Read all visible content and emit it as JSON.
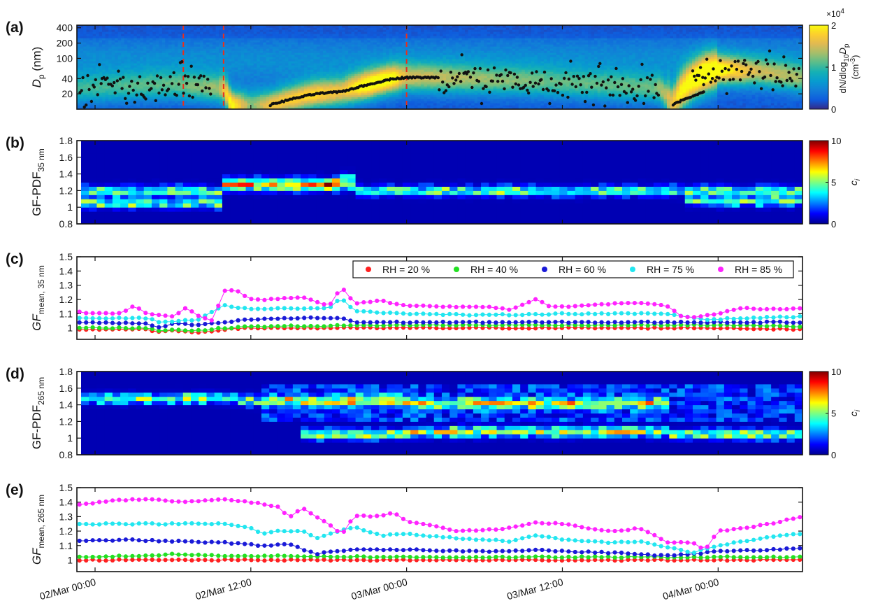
{
  "figure": {
    "x_tick_labels": [
      "02/Mar 00:00",
      "02/Mar 12:00",
      "03/Mar 00:00",
      "03/Mar 12:00",
      "04/Mar 00:00"
    ],
    "x_tick_hours": [
      0,
      12,
      24,
      36,
      48
    ],
    "x_range_hours": [
      -1.4,
      54.5
    ]
  },
  "chart_data": [
    {
      "panel": "(a)",
      "type": "heatmap",
      "ylabel_main": "D",
      "ylabel_sub": "p",
      "ylabel_unit": " (nm)",
      "yscale": "log",
      "ylim": [
        10,
        450
      ],
      "yticks": [
        20,
        40,
        100,
        200,
        400
      ],
      "colorbar": {
        "min": 0,
        "max": 2,
        "ticks": [
          0,
          1,
          2
        ],
        "multiplier_label": "×10",
        "multiplier_exp": "4",
        "label_line1": "dN/dlog",
        "label_line1_sub": "10",
        "label_line1_tail": "D",
        "label_line1_tail_sub": "p",
        "label_line2": "(cm",
        "label_line2_sup": "-3",
        "label_line2_tail": ")"
      },
      "event_lines_hours": [
        6.8,
        9.9,
        24.0
      ],
      "event_line_color": "#e8301c",
      "mode_diameter_points": [
        {
          "x_hours": [
            -1.2,
            9.0
          ],
          "d_nm": [
            20,
            40
          ],
          "kind": "scatter"
        },
        {
          "x_hours": [
            13.5,
            17.0,
            19.0,
            21.0,
            23.0,
            24.0,
            26.5
          ],
          "d_nm": [
            12,
            20,
            22,
            30,
            40,
            42,
            42
          ],
          "kind": "growth"
        },
        {
          "x_hours": [
            26.5,
            43.5
          ],
          "d_nm": [
            18,
            75
          ],
          "kind": "scatter"
        },
        {
          "x_hours": [
            44.5,
            46.0,
            47.0
          ],
          "d_nm": [
            12,
            18,
            22
          ],
          "kind": "growth"
        },
        {
          "x_hours": [
            46.0,
            54.3
          ],
          "d_nm": [
            25,
            80
          ],
          "kind": "scatter"
        }
      ]
    },
    {
      "panel": "(b)",
      "type": "heatmap",
      "ylabel_main": "GF-PDF",
      "ylabel_sub": "35 nm",
      "ylim": [
        0.8,
        1.8
      ],
      "yticks": [
        0.8,
        1,
        1.2,
        1.4,
        1.6,
        1.8
      ],
      "colorbar": {
        "min": 0,
        "max": 10,
        "ticks": [
          0,
          5,
          10
        ],
        "label": "c",
        "label_sub": "i"
      },
      "dominant_gf_by_hour": [
        {
          "x_hours": 0,
          "gf": [
            1.05,
            1.2
          ]
        },
        {
          "x_hours": 9,
          "gf": [
            1.02,
            1.18
          ]
        },
        {
          "x_hours": 10,
          "gf": [
            1.25,
            1.3
          ]
        },
        {
          "x_hours": 19,
          "gf": [
            1.35,
            1.25
          ]
        },
        {
          "x_hours": 20,
          "gf": [
            1.2
          ]
        },
        {
          "x_hours": 44,
          "gf": [
            1.2
          ]
        },
        {
          "x_hours": 45,
          "gf": [
            1.08,
            1.2
          ]
        },
        {
          "x_hours": 54,
          "gf": [
            1.1,
            1.2
          ]
        }
      ]
    },
    {
      "panel": "(c)",
      "type": "line",
      "ylabel_main": "GF",
      "ylabel_sub": "mean, 35 nm",
      "ylim": [
        0.92,
        1.5
      ],
      "yticks": [
        1,
        1.1,
        1.2,
        1.3,
        1.4,
        1.5
      ],
      "legend_position": "top-right",
      "series": [
        {
          "name": "RH = 20 %",
          "color": "#ff2020",
          "x": [
            -1.2,
            4,
            5,
            6,
            8,
            10,
            12,
            24,
            36,
            48,
            54.3
          ],
          "values": [
            0.99,
            0.99,
            0.97,
            0.98,
            0.97,
            0.99,
            1.0,
            1.0,
            1.0,
            1.0,
            0.99
          ]
        },
        {
          "name": "RH = 40 %",
          "color": "#22e022",
          "x": [
            -1.2,
            4,
            5,
            6,
            8,
            10,
            12,
            24,
            36,
            48,
            54.3
          ],
          "values": [
            1.0,
            1.0,
            0.98,
            0.99,
            0.98,
            1.0,
            1.01,
            1.02,
            1.02,
            1.02,
            1.01
          ]
        },
        {
          "name": "RH = 60 %",
          "color": "#1a1ad8",
          "x": [
            -1.2,
            4,
            5,
            6,
            8,
            10,
            12,
            16,
            19,
            20,
            24,
            36,
            48,
            54.3
          ],
          "values": [
            1.04,
            1.03,
            1.0,
            1.03,
            1.02,
            1.04,
            1.06,
            1.07,
            1.07,
            1.04,
            1.04,
            1.04,
            1.04,
            1.04
          ]
        },
        {
          "name": "RH = 75 %",
          "color": "#22e6f0",
          "x": [
            -1.2,
            4,
            5,
            8,
            10,
            12,
            16,
            18,
            19,
            20,
            24,
            30,
            36,
            44,
            47,
            54.3
          ],
          "values": [
            1.07,
            1.07,
            1.04,
            1.06,
            1.16,
            1.13,
            1.14,
            1.14,
            1.21,
            1.12,
            1.1,
            1.09,
            1.1,
            1.1,
            1.06,
            1.08
          ]
        },
        {
          "name": "RH = 85 %",
          "color": "#ff22ff",
          "x": [
            -1.2,
            2,
            3,
            4,
            5,
            6,
            7,
            8,
            9,
            10,
            11,
            12,
            14,
            16,
            18,
            19,
            20,
            22,
            24,
            26,
            28,
            30,
            32,
            34,
            35,
            36,
            38,
            40,
            42,
            44,
            45,
            46,
            48,
            50,
            52,
            54.3
          ],
          "values": [
            1.11,
            1.1,
            1.16,
            1.1,
            1.09,
            1.08,
            1.14,
            1.08,
            1.05,
            1.26,
            1.26,
            1.2,
            1.2,
            1.22,
            1.15,
            1.29,
            1.17,
            1.19,
            1.16,
            1.15,
            1.15,
            1.15,
            1.13,
            1.2,
            1.15,
            1.15,
            1.16,
            1.17,
            1.18,
            1.16,
            1.09,
            1.07,
            1.1,
            1.14,
            1.13,
            1.14
          ]
        }
      ]
    },
    {
      "panel": "(d)",
      "type": "heatmap",
      "ylabel_main": "GF-PDF",
      "ylabel_sub": "265 nm",
      "ylim": [
        0.8,
        1.8
      ],
      "yticks": [
        0.8,
        1,
        1.2,
        1.4,
        1.6,
        1.8
      ],
      "colorbar": {
        "min": 0,
        "max": 10,
        "ticks": [
          0,
          5,
          10
        ],
        "label": "c",
        "label_sub": "i"
      },
      "dominant_gf_by_hour": [
        {
          "x_hours": 0,
          "gf": [
            1.48
          ]
        },
        {
          "x_hours": 11,
          "gf": [
            1.45
          ]
        },
        {
          "x_hours": 16,
          "gf": [
            1.45,
            1.05
          ]
        },
        {
          "x_hours": 24,
          "gf": [
            1.42,
            1.08
          ]
        },
        {
          "x_hours": 44,
          "gf": [
            1.05
          ]
        },
        {
          "x_hours": 54,
          "gf": [
            1.4,
            1.1
          ]
        }
      ]
    },
    {
      "panel": "(e)",
      "type": "line",
      "ylabel_main": "GF",
      "ylabel_sub": "mean, 265 nm",
      "ylim": [
        0.92,
        1.5
      ],
      "yticks": [
        1,
        1.1,
        1.2,
        1.3,
        1.4,
        1.5
      ],
      "series": [
        {
          "name": "RH = 20 %",
          "color": "#ff2020",
          "x": [
            -1.2,
            54.3
          ],
          "values": [
            1.0,
            1.0
          ]
        },
        {
          "name": "RH = 40 %",
          "color": "#22e022",
          "x": [
            -1.2,
            4,
            6,
            10,
            24,
            54.3
          ],
          "values": [
            1.02,
            1.03,
            1.04,
            1.03,
            1.02,
            1.02
          ]
        },
        {
          "name": "RH = 60 %",
          "color": "#1a1ad8",
          "x": [
            -1.2,
            2,
            6,
            10,
            13,
            15,
            17,
            18,
            20,
            24,
            30,
            34,
            36,
            40,
            44,
            46,
            48,
            54.3
          ],
          "values": [
            1.13,
            1.14,
            1.13,
            1.12,
            1.1,
            1.11,
            1.04,
            1.06,
            1.07,
            1.07,
            1.06,
            1.07,
            1.06,
            1.05,
            1.03,
            1.04,
            1.06,
            1.08
          ]
        },
        {
          "name": "RH = 75 %",
          "color": "#22e6f0",
          "x": [
            -1.2,
            2,
            6,
            10,
            12,
            13,
            14,
            16,
            17,
            18,
            20,
            22,
            24,
            28,
            32,
            34,
            36,
            40,
            42,
            44,
            46,
            48,
            52,
            54.3
          ],
          "values": [
            1.25,
            1.25,
            1.25,
            1.25,
            1.22,
            1.18,
            1.2,
            1.2,
            1.15,
            1.18,
            1.23,
            1.17,
            1.18,
            1.15,
            1.13,
            1.17,
            1.14,
            1.12,
            1.13,
            1.09,
            1.05,
            1.1,
            1.16,
            1.18
          ]
        },
        {
          "name": "RH = 85 %",
          "color": "#ff22ff",
          "x": [
            -1.2,
            1,
            4,
            7,
            10,
            12,
            14,
            15,
            16,
            17,
            18,
            19,
            20,
            22,
            23,
            24,
            28,
            30,
            32,
            34,
            36,
            38,
            40,
            42,
            43,
            44,
            46,
            47,
            48,
            50,
            52,
            54.3
          ],
          "values": [
            1.38,
            1.41,
            1.42,
            1.4,
            1.42,
            1.4,
            1.37,
            1.3,
            1.36,
            1.3,
            1.25,
            1.17,
            1.31,
            1.3,
            1.33,
            1.27,
            1.2,
            1.21,
            1.22,
            1.26,
            1.25,
            1.22,
            1.2,
            1.22,
            1.18,
            1.12,
            1.12,
            1.07,
            1.2,
            1.22,
            1.25,
            1.3
          ]
        }
      ]
    }
  ]
}
